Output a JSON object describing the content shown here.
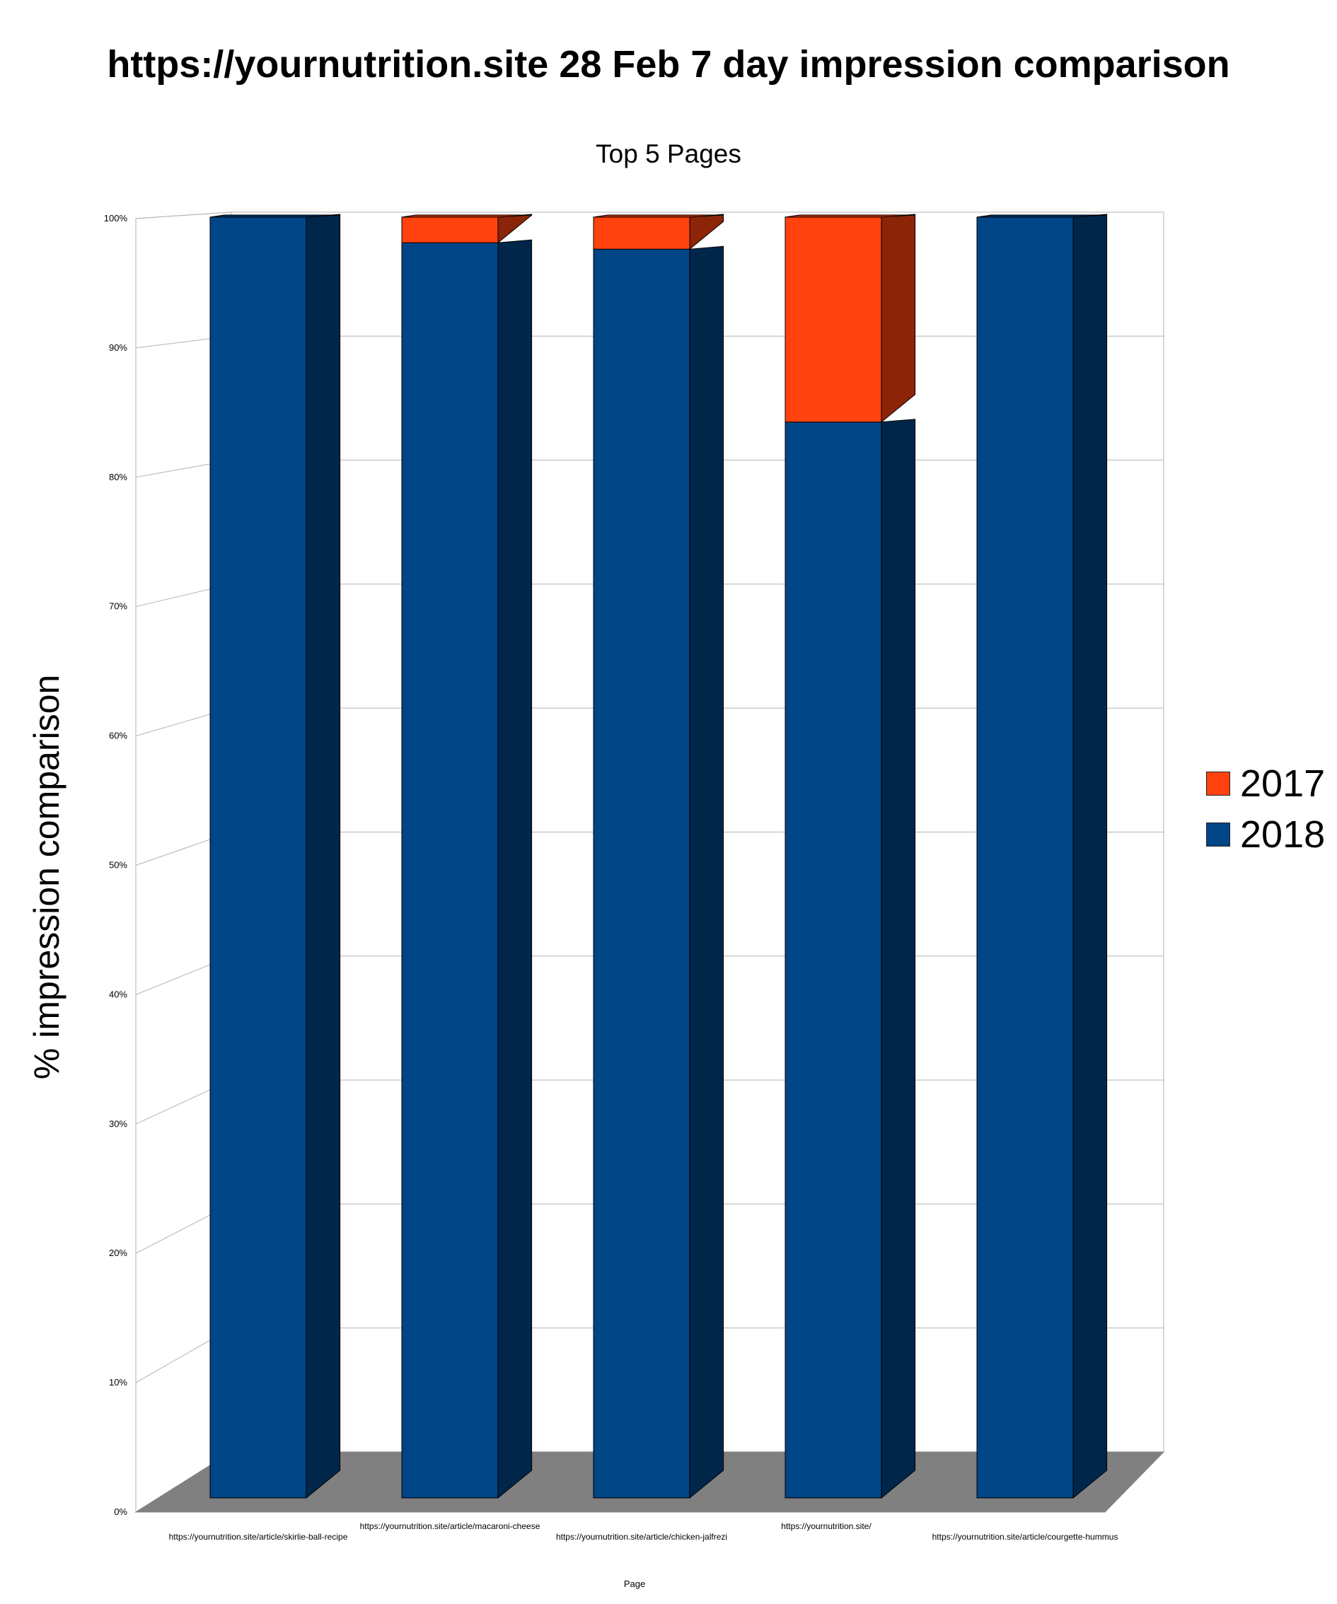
{
  "chart_data": {
    "type": "bar",
    "stacked": true,
    "percent_stacked": true,
    "style": "3d",
    "title": "https://yournutrition.site 28 Feb 7 day impression comparison",
    "subtitle": "Top 5 Pages",
    "xlabel": "Page",
    "ylabel": "% impression comparison",
    "ylim": [
      0,
      100
    ],
    "yticks": [
      "0%",
      "10%",
      "20%",
      "30%",
      "40%",
      "50%",
      "60%",
      "70%",
      "80%",
      "90%",
      "100%"
    ],
    "grid": true,
    "legend_position": "right",
    "categories": [
      "https://yournutrition.site/article/skirlie-ball-recipe",
      "https://yournutrition.site/article/macaroni-cheese",
      "https://yournutrition.site/article/chicken-jalfrezi",
      "https://yournutrition.site/",
      "https://yournutrition.site/article/courgette-hummus"
    ],
    "series": [
      {
        "name": "2018",
        "color": "#004586",
        "values": [
          100,
          98,
          97.5,
          84,
          100
        ]
      },
      {
        "name": "2017",
        "color": "#ff420e",
        "values": [
          0,
          2,
          2.5,
          16,
          0
        ]
      }
    ],
    "legend": [
      {
        "name": "2017",
        "color": "#ff420e"
      },
      {
        "name": "2018",
        "color": "#004586"
      }
    ]
  }
}
